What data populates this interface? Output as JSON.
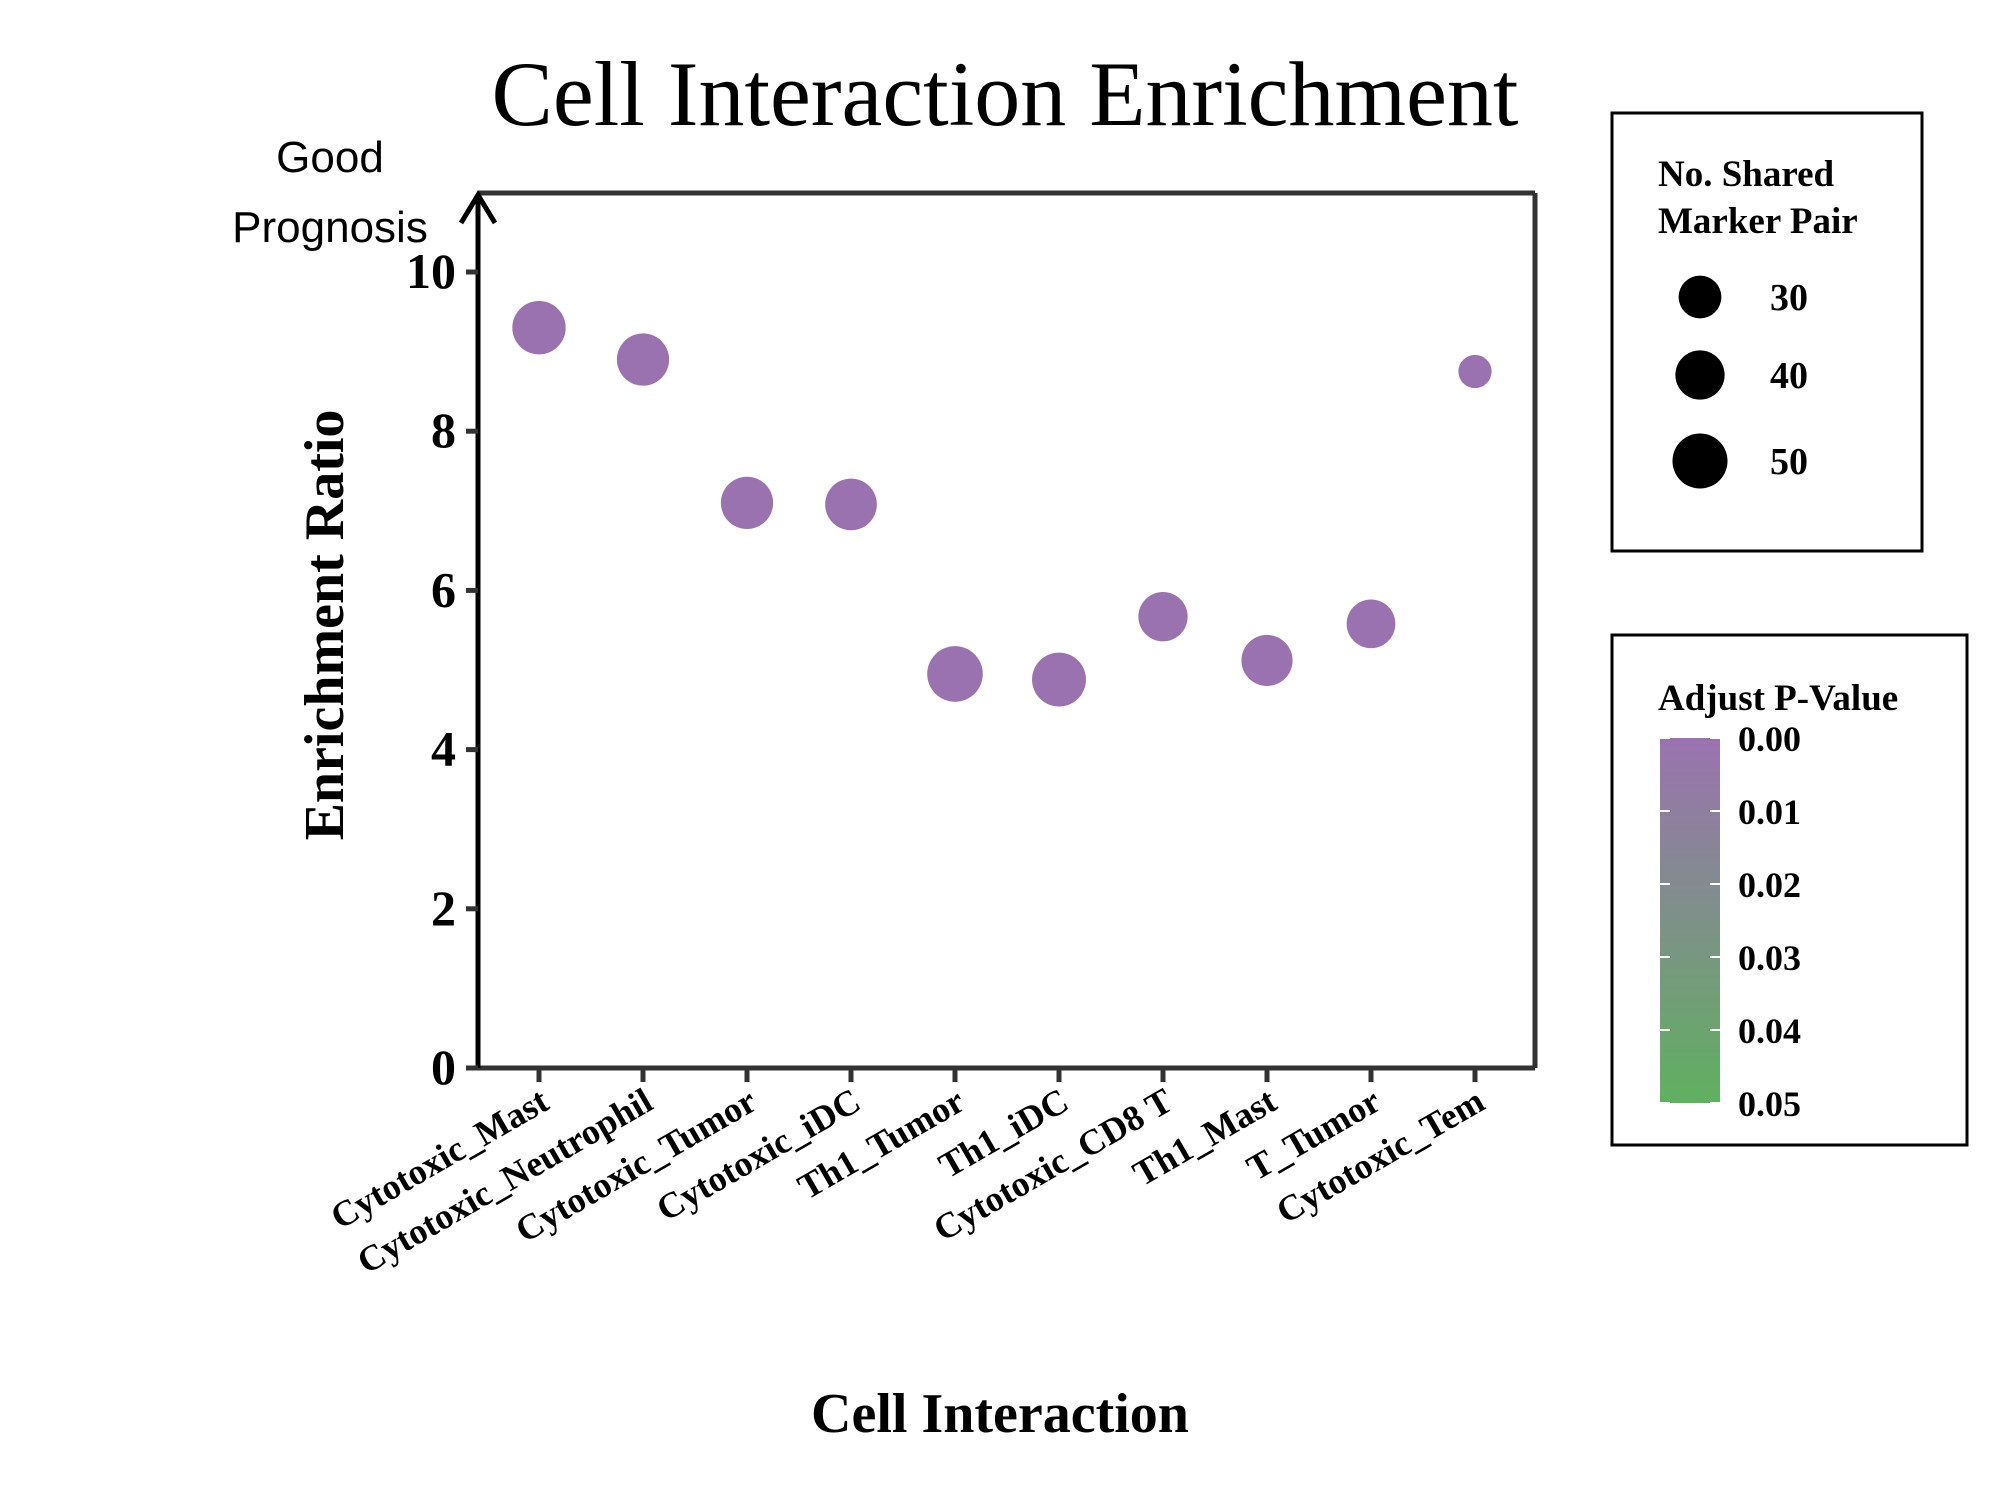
{
  "chart_data": {
    "type": "scatter",
    "title": "Cell Interaction Enrichment",
    "xlabel": "Cell Interaction",
    "ylabel": "Enrichment Ratio",
    "annotation": [
      "Good",
      "Prognosis"
    ],
    "ylim": [
      0,
      11
    ],
    "yticks": [
      0,
      2,
      4,
      6,
      8,
      10
    ],
    "categories": [
      "Cytotoxic_Mast",
      "Cytotoxic_Neutrophil",
      "Cytotoxic_Tumor",
      "Cytotoxic_iDC",
      "Th1_Tumor",
      "Th1_iDC",
      "Cytotoxic_CD8 T",
      "Th1_Mast",
      "T_Tumor",
      "Cytotoxic_Tem"
    ],
    "values": [
      9.3,
      8.9,
      7.1,
      7.08,
      4.95,
      4.88,
      5.67,
      5.12,
      5.58,
      8.75
    ],
    "sizes": [
      47,
      45,
      45,
      44,
      51,
      48,
      40,
      43,
      39,
      18
    ],
    "pvalues": [
      0,
      0,
      0,
      0,
      0,
      0,
      0,
      0,
      0,
      0
    ],
    "size_legend": {
      "title": [
        "No. Shared",
        "Marker Pair"
      ],
      "values": [
        30,
        40,
        50
      ]
    },
    "color_legend": {
      "title": "Adjust P-Value",
      "ticks": [
        "0.00",
        "0.01",
        "0.02",
        "0.03",
        "0.04",
        "0.05"
      ],
      "low_color": "#9b72b0",
      "high_color": "#60b060"
    },
    "point_color": "#9b72b0",
    "grid": false
  }
}
